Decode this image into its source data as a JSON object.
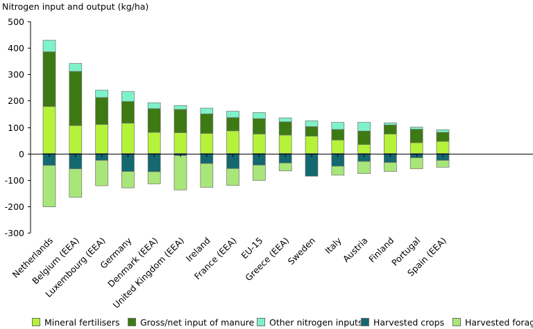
{
  "chart_data": {
    "type": "bar",
    "stacked": true,
    "title": "Nitrogen input and output (kg/ha)",
    "xlabel": "",
    "ylabel": "",
    "ylim": [
      -300,
      500
    ],
    "yticks": [
      -300,
      -200,
      -100,
      0,
      100,
      200,
      300,
      400,
      500
    ],
    "grid": false,
    "legend_position": "bottom",
    "categories": [
      "Netherlands",
      "Belgium (EEA)",
      "Luxembourg  (EEA)",
      "Germany",
      "Denmark  (EEA)",
      "United Kingdom  (EEA)",
      "Ireland",
      "France (EEA)",
      "EU-15",
      "Greece (EEA)",
      "Sweden",
      "Italy",
      "Austria",
      "Finland",
      "Portugal",
      "Spain (EEA)"
    ],
    "series": [
      {
        "name": "Mineral fertilisers",
        "color": "#b5f23a",
        "values": [
          178,
          106,
          110,
          115,
          80,
          79,
          76,
          86,
          74,
          70,
          66,
          51,
          34,
          74,
          41,
          46
        ]
      },
      {
        "name": "Gross/net input of manure",
        "color": "#3d7a13",
        "values": [
          207,
          205,
          102,
          82,
          90,
          88,
          74,
          50,
          58,
          50,
          36,
          40,
          51,
          34,
          51,
          34
        ]
      },
      {
        "name": "Other nitrogen inputs",
        "color": "#7ef2c8",
        "values": [
          44,
          30,
          28,
          38,
          22,
          15,
          22,
          24,
          23,
          15,
          22,
          27,
          33,
          8,
          8,
          10
        ]
      },
      {
        "name": "Harvested crops",
        "color": "#14686f",
        "values": [
          -45,
          -58,
          -26,
          -68,
          -69,
          -8,
          -38,
          -57,
          -44,
          -36,
          -86,
          -48,
          -30,
          -34,
          -16,
          -26
        ]
      },
      {
        "name": "Harvested forage",
        "color": "#a9e67a",
        "values": [
          -157,
          -108,
          -96,
          -62,
          -46,
          -130,
          -90,
          -64,
          -58,
          -30,
          0,
          -34,
          -46,
          -34,
          -42,
          -26
        ]
      }
    ]
  }
}
